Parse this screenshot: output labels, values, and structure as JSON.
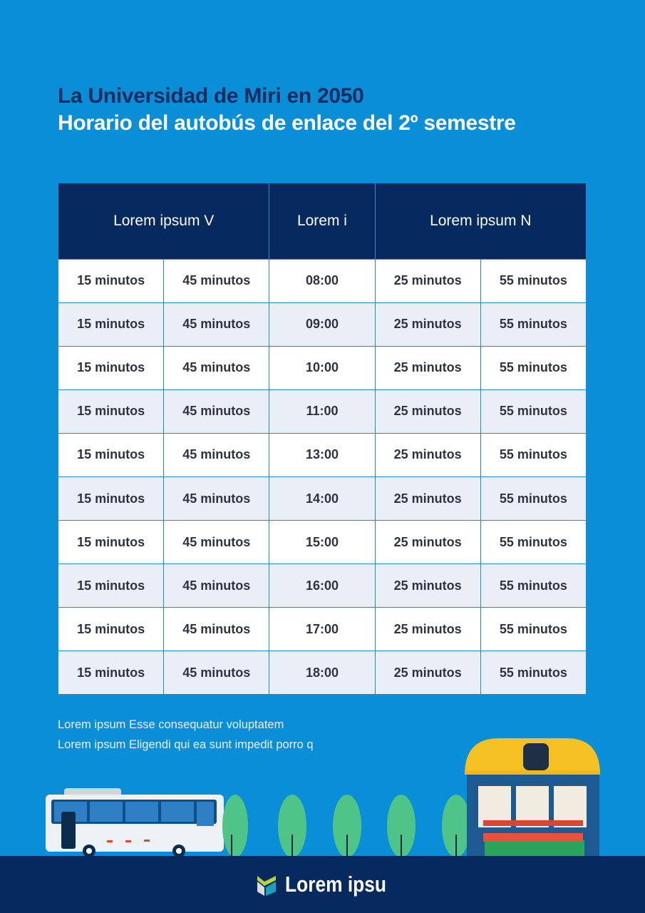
{
  "header": {
    "title_line1": "La Universidad de Miri en 2050",
    "title_line2": "Horario del autobús de enlace del 2º semestre"
  },
  "table": {
    "headers": [
      "Lorem ipsum V",
      "Lorem i",
      "Lorem ipsum N"
    ],
    "rows": [
      [
        "15 minutos",
        "45 minutos",
        "08:00",
        "25 minutos",
        "55 minutos"
      ],
      [
        "15 minutos",
        "45 minutos",
        "09:00",
        "25 minutos",
        "55 minutos"
      ],
      [
        "15 minutos",
        "45 minutos",
        "10:00",
        "25 minutos",
        "55 minutos"
      ],
      [
        "15 minutos",
        "45 minutos",
        "11:00",
        "25 minutos",
        "55 minutos"
      ],
      [
        "15 minutos",
        "45 minutos",
        "13:00",
        "25 minutos",
        "55 minutos"
      ],
      [
        "15 minutos",
        "45 minutos",
        "14:00",
        "25 minutos",
        "55 minutos"
      ],
      [
        "15 minutos",
        "45 minutos",
        "15:00",
        "25 minutos",
        "55 minutos"
      ],
      [
        "15 minutos",
        "45 minutos",
        "16:00",
        "25 minutos",
        "55 minutos"
      ],
      [
        "15 minutos",
        "45 minutos",
        "17:00",
        "25 minutos",
        "55 minutos"
      ],
      [
        "15 minutos",
        "45 minutos",
        "18:00",
        "25 minutos",
        "55 minutos"
      ]
    ]
  },
  "notes": [
    "Lorem ipsum Esse consequatur voluptatem",
    "Lorem ipsum Eligendi qui ea sunt impedit porro q"
  ],
  "footer": {
    "brand": "Lorem ipsu"
  },
  "colors": {
    "background": "#0a8ed8",
    "header_dark": "#062a5e",
    "title_dark": "#0b2c5f"
  }
}
